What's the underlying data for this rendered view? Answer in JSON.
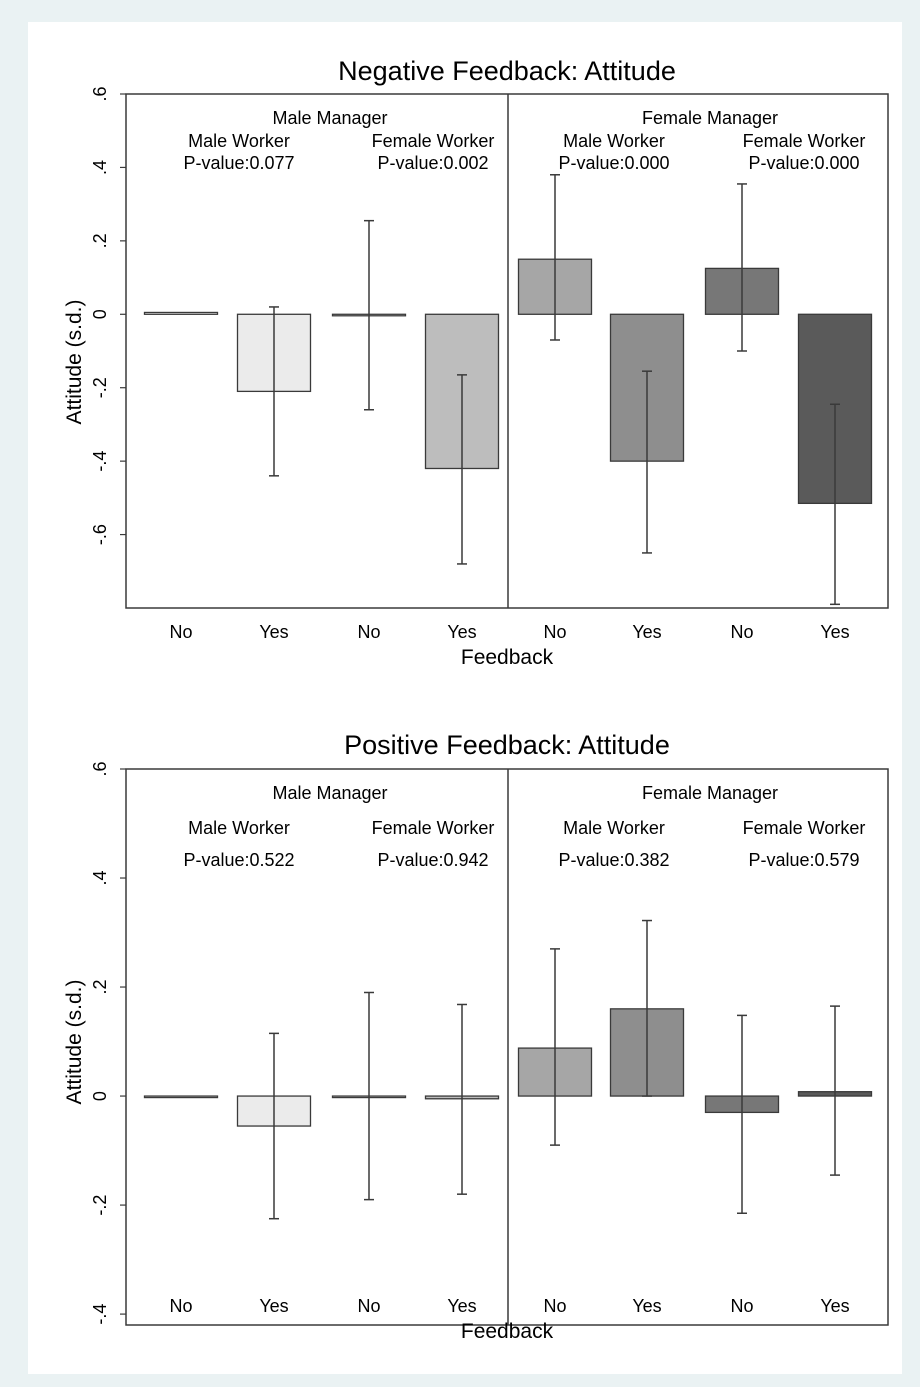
{
  "chart_data": [
    {
      "type": "bar",
      "title": "Negative Feedback: Attitude",
      "xlabel": "Feedback",
      "ylabel": "Attitude (s.d.)",
      "ylim": [
        -0.8,
        0.6
      ],
      "yticks": [
        -0.6,
        -0.4,
        -0.2,
        0,
        0.2,
        0.4,
        0.6
      ],
      "ytick_labels": [
        "-.6",
        "-.4",
        "-.2",
        "0",
        ".2",
        ".4",
        ".6"
      ],
      "categories": [
        "No",
        "Yes",
        "No",
        "Yes",
        "No",
        "Yes",
        "No",
        "Yes"
      ],
      "groups": [
        {
          "label": "Male Manager",
          "subgroups": [
            {
              "label": "Male Worker",
              "pvalue": "P-value:0.077"
            },
            {
              "label": "Female Worker",
              "pvalue": "P-value:0.002"
            }
          ]
        },
        {
          "label": "Female Manager",
          "subgroups": [
            {
              "label": "Male Worker",
              "pvalue": "P-value:0.000"
            },
            {
              "label": "Female Worker",
              "pvalue": "P-value:0.000"
            }
          ]
        }
      ],
      "values": [
        0.005,
        -0.21,
        0.0,
        -0.42,
        0.15,
        -0.4,
        0.125,
        -0.515
      ],
      "ci_low": [
        0.005,
        -0.44,
        -0.26,
        -0.68,
        -0.07,
        -0.65,
        -0.1,
        -0.79
      ],
      "ci_high": [
        0.005,
        0.02,
        0.255,
        -0.165,
        0.38,
        -0.155,
        0.355,
        -0.245
      ],
      "colors": [
        "#ffffff",
        "#ebebeb",
        "#ffffff",
        "#bdbdbd",
        "#a6a6a6",
        "#8e8e8e",
        "#777777",
        "#5a5a5a"
      ]
    },
    {
      "type": "bar",
      "title": "Positive Feedback: Attitude",
      "xlabel": "Feedback",
      "ylabel": "Attitude (s.d.)",
      "ylim": [
        -0.42,
        0.6
      ],
      "yticks": [
        -0.4,
        -0.2,
        0,
        0.2,
        0.4,
        0.6
      ],
      "ytick_labels": [
        "-.4",
        "-.2",
        "0",
        ".2",
        ".4",
        ".6"
      ],
      "categories": [
        "No",
        "Yes",
        "No",
        "Yes",
        "No",
        "Yes",
        "No",
        "Yes"
      ],
      "groups": [
        {
          "label": "Male Manager",
          "subgroups": [
            {
              "label": "Male Worker",
              "pvalue": "P-value:0.522"
            },
            {
              "label": "Female Worker",
              "pvalue": "P-value:0.942"
            }
          ]
        },
        {
          "label": "Female Manager",
          "subgroups": [
            {
              "label": "Male Worker",
              "pvalue": "P-value:0.382"
            },
            {
              "label": "Female Worker",
              "pvalue": "P-value:0.579"
            }
          ]
        }
      ],
      "values": [
        0.0,
        -0.055,
        0.0,
        -0.005,
        0.088,
        0.16,
        -0.03,
        0.008
      ],
      "ci_low": [
        0.0,
        -0.225,
        -0.19,
        -0.18,
        -0.09,
        0.0,
        -0.215,
        -0.145
      ],
      "ci_high": [
        0.0,
        0.115,
        0.19,
        0.168,
        0.27,
        0.322,
        0.148,
        0.165
      ],
      "colors": [
        "#ffffff",
        "#ebebeb",
        "#ffffff",
        "#bdbdbd",
        "#a6a6a6",
        "#8e8e8e",
        "#777777",
        "#5a5a5a"
      ]
    }
  ]
}
